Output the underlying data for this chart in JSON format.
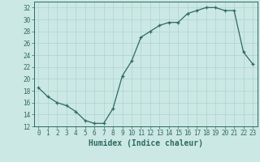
{
  "x": [
    0,
    1,
    2,
    3,
    4,
    5,
    6,
    7,
    8,
    9,
    10,
    11,
    12,
    13,
    14,
    15,
    16,
    17,
    18,
    19,
    20,
    21,
    22,
    23
  ],
  "y": [
    18.5,
    17.0,
    16.0,
    15.5,
    14.5,
    13.0,
    12.5,
    12.5,
    15.0,
    20.5,
    23.0,
    27.0,
    28.0,
    29.0,
    29.5,
    29.5,
    31.0,
    31.5,
    32.0,
    32.0,
    31.5,
    31.5,
    24.5,
    22.5
  ],
  "xlabel": "Humidex (Indice chaleur)",
  "ylim": [
    12,
    33
  ],
  "xlim": [
    -0.5,
    23.5
  ],
  "yticks": [
    12,
    14,
    16,
    18,
    20,
    22,
    24,
    26,
    28,
    30,
    32
  ],
  "xticks": [
    0,
    1,
    2,
    3,
    4,
    5,
    6,
    7,
    8,
    9,
    10,
    11,
    12,
    13,
    14,
    15,
    16,
    17,
    18,
    19,
    20,
    21,
    22,
    23
  ],
  "line_color": "#2d6b5e",
  "marker": "+",
  "bg_color": "#cce8e4",
  "grid_color": "#aad4cf",
  "tick_fontsize": 5.5,
  "xlabel_fontsize": 7
}
